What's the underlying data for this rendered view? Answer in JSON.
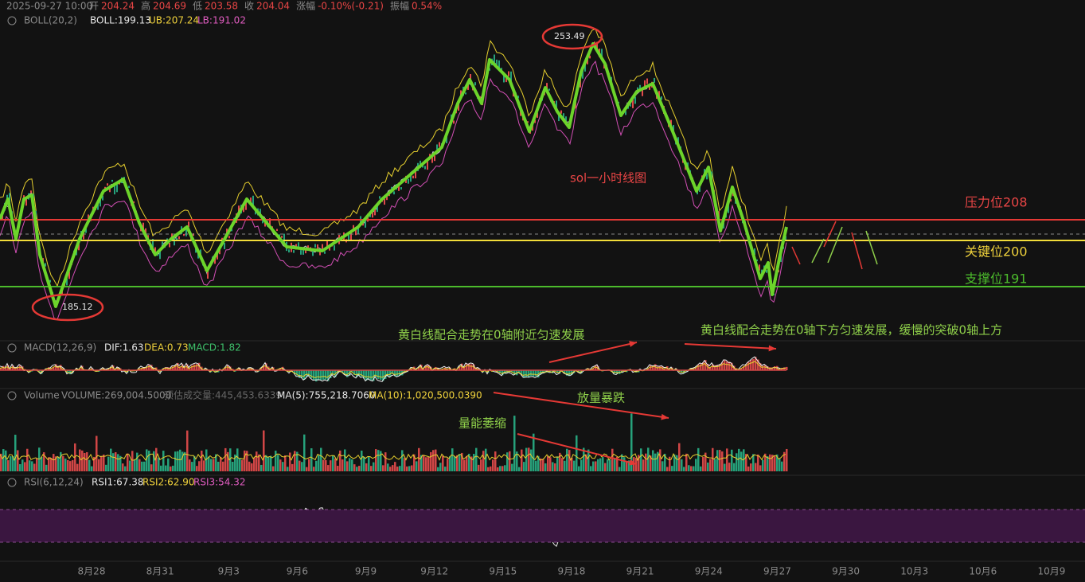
{
  "header": {
    "datetime": "2025-09-27 10:00",
    "items": [
      {
        "label": "开",
        "value": "204.24"
      },
      {
        "label": "高",
        "value": "204.69"
      },
      {
        "label": "低",
        "value": "203.58"
      },
      {
        "label": "收",
        "value": "204.04"
      },
      {
        "label": "涨幅",
        "value": "-0.10%(-0.21)"
      },
      {
        "label": "振幅",
        "value": "0.54%"
      }
    ]
  },
  "boll": {
    "name": "BOLL(20,2)",
    "mid": "BOLL:199.13",
    "ub": "UB:207.24",
    "lb": "LB:191.02"
  },
  "main": {
    "title": "sol一小时线图",
    "high_mark": "253.49",
    "low_mark": "185.12",
    "levels": {
      "resistance": "压力位208",
      "key": "关键位200",
      "support": "支撑位191"
    }
  },
  "macd": {
    "name": "MACD(12,26,9)",
    "dif": "DIF:1.63",
    "dea": "DEA:0.73",
    "macd": "MACD:1.82",
    "notes": [
      "黄白线配合走势在0轴附近匀速发展",
      "黄白线配合走势在0轴下方匀速发展，缓慢的突破0轴上方"
    ]
  },
  "volume": {
    "name": "Volume",
    "vol": "VOLUME:269,004.5000",
    "est": "预估成交量:445,453.6339",
    "ma5": "MA(5):755,218.7060",
    "ma10": "MA(10):1,020,500.0390",
    "notes": [
      "放量暴跌",
      "量能萎缩"
    ]
  },
  "rsi": {
    "name": "RSI(6,12,24)",
    "rsi1": "RSI1:67.38",
    "rsi2": "RSI2:62.90",
    "rsi3": "RSI3:54.32"
  },
  "x_axis": [
    "8月28",
    "8月31",
    "9月3",
    "9月6",
    "9月9",
    "9月12",
    "9月15",
    "9月18",
    "9月21",
    "9月24",
    "9月27",
    "9月30",
    "10月3",
    "10月6",
    "10月9"
  ]
}
